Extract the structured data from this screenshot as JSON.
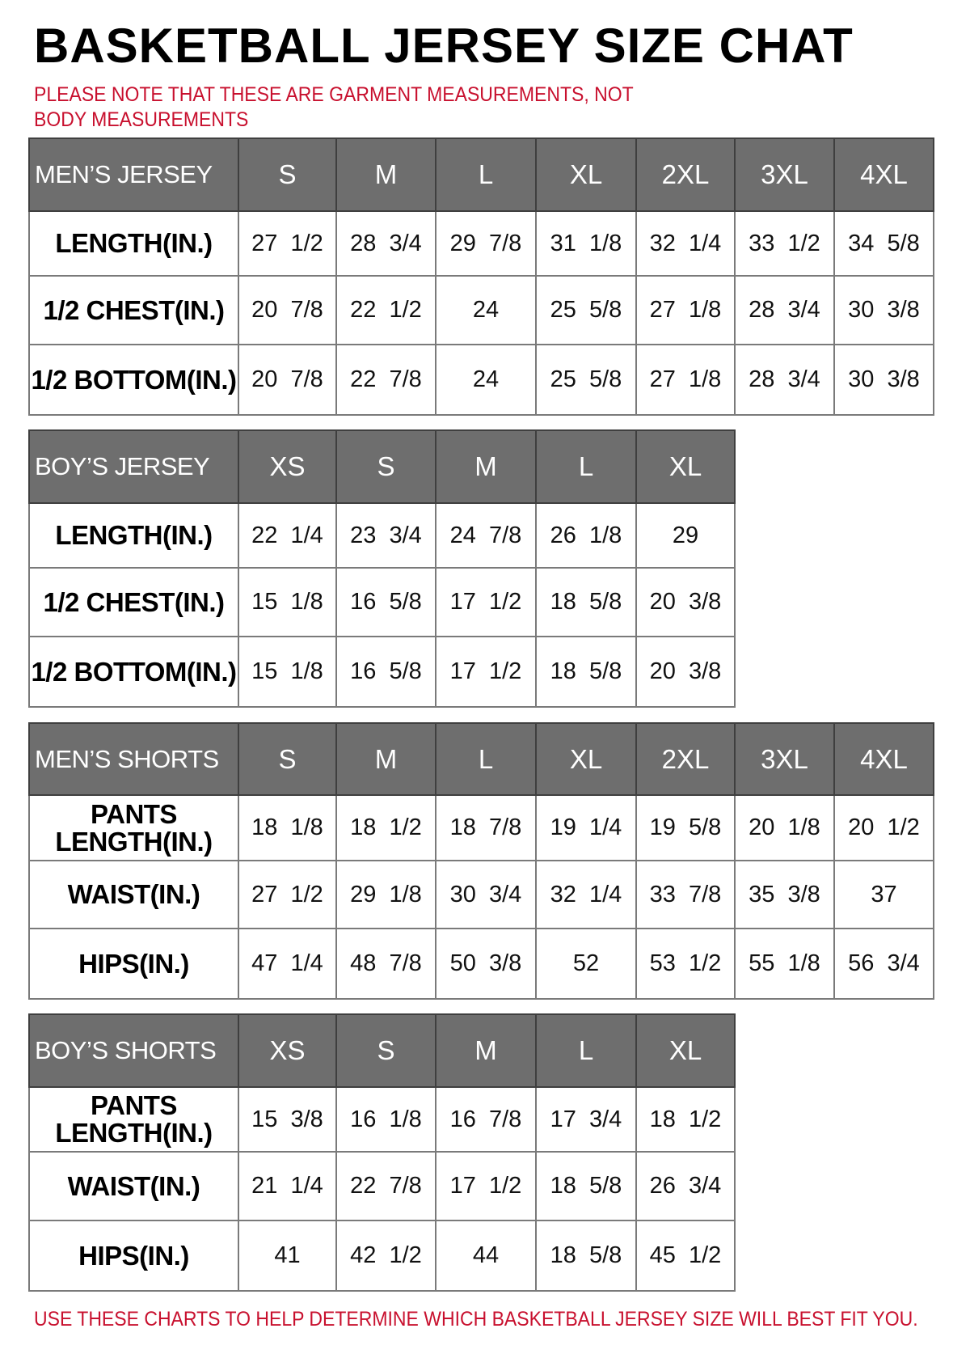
{
  "title": "BASKETBALL JERSEY SIZE CHAT",
  "note": "PLEASE NOTE THAT THESE ARE GARMENT MEASUREMENTS, NOT BODY MEASUREMENTS",
  "footer": "USE THESE CHARTS TO HELP DETERMINE WHICH BASKETBALL JERSEY SIZE WILL BEST FIT YOU.",
  "colors": {
    "header_bg": "#6e6e6e",
    "note_red": "#c8102e"
  },
  "tables": [
    {
      "name": "mens-jersey",
      "header": "MEN’S JERSEY",
      "sizes": [
        "S",
        "M",
        "L",
        "XL",
        "2XL",
        "3XL",
        "4XL"
      ],
      "rows": [
        {
          "label": "LENGTH(IN.)",
          "values": [
            "27 1/2",
            "28 3/4",
            "29 7/8",
            "31 1/8",
            "32 1/4",
            "33 1/2",
            "34 5/8"
          ]
        },
        {
          "label": "1/2 CHEST(IN.)",
          "values": [
            "20 7/8",
            "22 1/2",
            "24",
            "25 5/8",
            "27 1/8",
            "28 3/4",
            "30 3/8"
          ]
        },
        {
          "label": "1/2 BOTTOM(IN.)",
          "values": [
            "20 7/8",
            "22 7/8",
            "24",
            "25 5/8",
            "27 1/8",
            "28 3/4",
            "30 3/8"
          ]
        }
      ]
    },
    {
      "name": "boys-jersey",
      "header": "BOY’S JERSEY",
      "sizes": [
        "XS",
        "S",
        "M",
        "L",
        "XL"
      ],
      "rows": [
        {
          "label": "LENGTH(IN.)",
          "values": [
            "22 1/4",
            "23 3/4",
            "24 7/8",
            "26 1/8",
            "29"
          ]
        },
        {
          "label": "1/2 CHEST(IN.)",
          "values": [
            "15 1/8",
            "16 5/8",
            "17 1/2",
            "18 5/8",
            "20 3/8"
          ]
        },
        {
          "label": "1/2 BOTTOM(IN.)",
          "values": [
            "15 1/8",
            "16 5/8",
            "17 1/2",
            "18 5/8",
            "20 3/8"
          ]
        }
      ]
    },
    {
      "name": "mens-shorts",
      "header": "MEN’S SHORTS",
      "sizes": [
        "S",
        "M",
        "L",
        "XL",
        "2XL",
        "3XL",
        "4XL"
      ],
      "rows": [
        {
          "label": "PANTS LENGTH(IN.)",
          "values": [
            "18 1/8",
            "18 1/2",
            "18 7/8",
            "19 1/4",
            "19 5/8",
            "20 1/8",
            "20 1/2"
          ]
        },
        {
          "label": "WAIST(IN.)",
          "values": [
            "27 1/2",
            "29 1/8",
            "30 3/4",
            "32 1/4",
            "33 7/8",
            "35 3/8",
            "37"
          ]
        },
        {
          "label": "HIPS(IN.)",
          "values": [
            "47 1/4",
            "48 7/8",
            "50 3/8",
            "52",
            "53 1/2",
            "55 1/8",
            "56 3/4"
          ]
        }
      ]
    },
    {
      "name": "boys-shorts",
      "header": "BOY’S SHORTS",
      "sizes": [
        "XS",
        "S",
        "M",
        "L",
        "XL"
      ],
      "rows": [
        {
          "label": "PANTS LENGTH(IN.)",
          "values": [
            "15 3/8",
            "16 1/8",
            "16 7/8",
            "17 3/4",
            "18 1/2"
          ]
        },
        {
          "label": "WAIST(IN.)",
          "values": [
            "21 1/4",
            "22 7/8",
            "17 1/2",
            "18 5/8",
            "26 3/4"
          ]
        },
        {
          "label": "HIPS(IN.)",
          "values": [
            "41",
            "42 1/2",
            "44",
            "18 5/8",
            "45 1/2"
          ]
        }
      ]
    }
  ]
}
